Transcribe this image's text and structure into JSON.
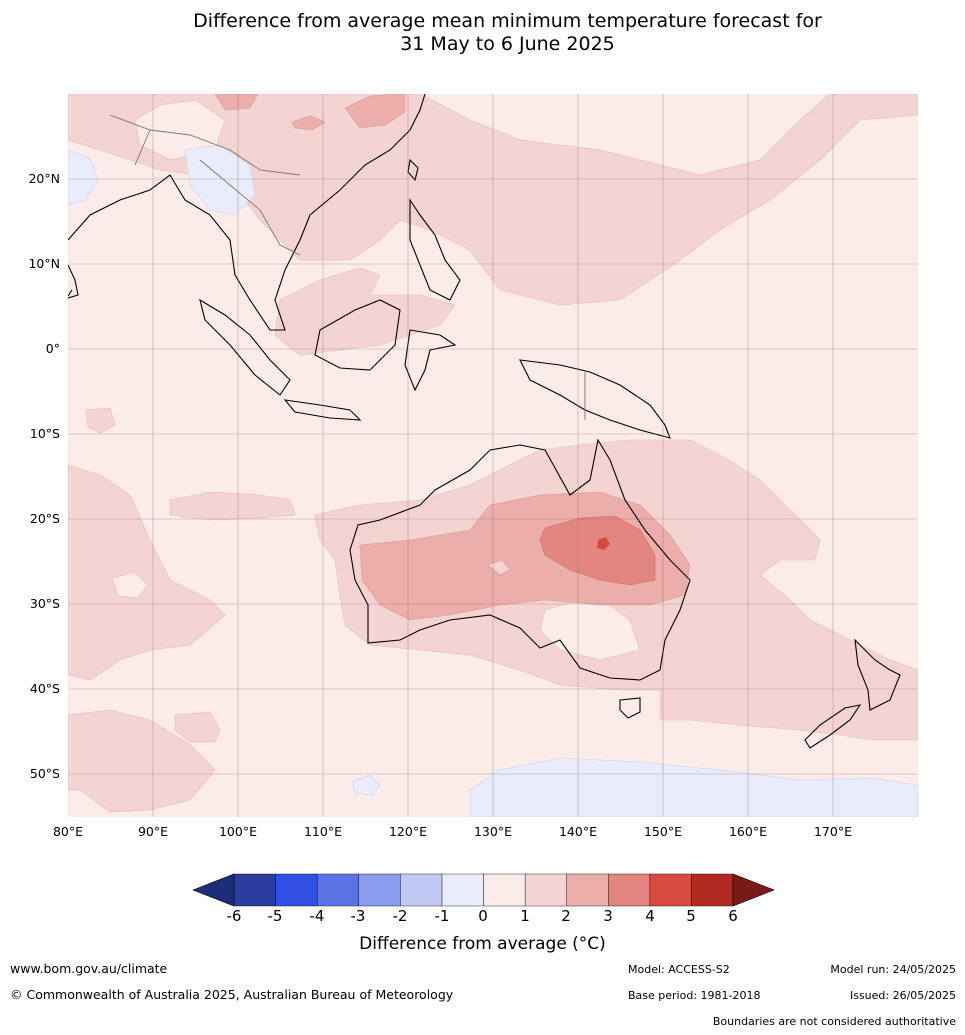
{
  "title_line1": "Difference from average mean minimum temperature forecast for",
  "title_line2": "31 May to 6 June 2025",
  "map": {
    "lat_ticks": [
      "20°N",
      "10°N",
      "0°",
      "10°S",
      "20°S",
      "30°S",
      "40°S",
      "50°S"
    ],
    "lon_ticks": [
      "80°E",
      "90°E",
      "100°E",
      "110°E",
      "120°E",
      "130°E",
      "140°E",
      "150°E",
      "160°E",
      "170°E"
    ],
    "lon_range": [
      80,
      180
    ],
    "lat_range": [
      -55,
      30
    ]
  },
  "colorbar": {
    "labels": [
      "-6",
      "-5",
      "-4",
      "-3",
      "-2",
      "-1",
      "0",
      "1",
      "2",
      "3",
      "4",
      "5",
      "6"
    ],
    "colors": [
      "#2a3d9e",
      "#3050e0",
      "#5a74e6",
      "#8a9ced",
      "#c0c8f4",
      "#e8ecfb",
      "#fbecea",
      "#f4d4d2",
      "#ecaeaa",
      "#e48680",
      "#d74a3e",
      "#b02a22"
    ],
    "low_extend_color": "#1e2d78",
    "high_extend_color": "#7a1a16",
    "title": "Difference from average (°C)"
  },
  "footer": {
    "website": "www.bom.gov.au/climate",
    "copyright": "© Commonwealth of Australia 2025, Australian Bureau of Meteorology",
    "model": "Model: ACCESS-S2",
    "base_period": "Base period: 1981-2018",
    "model_run": "Model run: 24/05/2025",
    "issued": "Issued: 26/05/2025",
    "disclaimer": "Boundaries are not considered authoritative"
  }
}
